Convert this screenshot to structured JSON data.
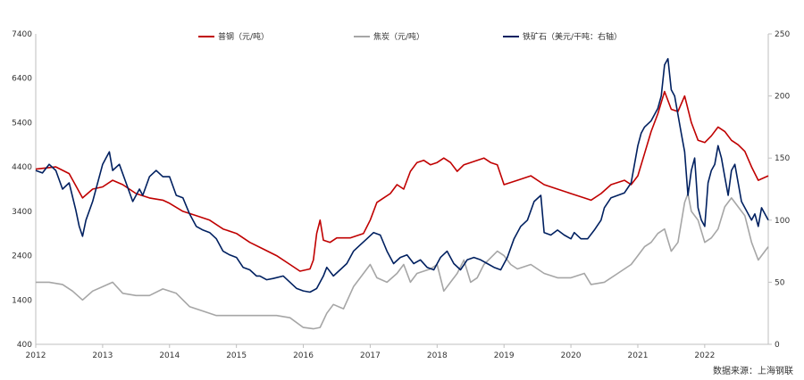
{
  "chart_data": {
    "type": "line",
    "title": "",
    "x_range": [
      2012,
      2022.95
    ],
    "x_ticks": [
      "2012",
      "2013",
      "2014",
      "2015",
      "2016",
      "2017",
      "2018",
      "2019",
      "2020",
      "2021",
      "2022"
    ],
    "y_left": {
      "range": [
        400,
        7400
      ],
      "ticks": [
        "400",
        "1400",
        "2400",
        "3400",
        "4400",
        "5400",
        "6400",
        "7400"
      ]
    },
    "y_right": {
      "range": [
        0,
        250
      ],
      "ticks": [
        "0",
        "50",
        "100",
        "150",
        "200",
        "250"
      ]
    },
    "series": [
      {
        "name": "普钢（元/吨）",
        "axis": "left",
        "color": "#c00000",
        "x": [
          2012.0,
          2012.3,
          2012.5,
          2012.7,
          2012.85,
          2013.0,
          2013.15,
          2013.3,
          2013.5,
          2013.7,
          2013.9,
          2014.0,
          2014.2,
          2014.4,
          2014.6,
          2014.8,
          2015.0,
          2015.2,
          2015.4,
          2015.6,
          2015.8,
          2015.95,
          2016.1,
          2016.15,
          2016.2,
          2016.25,
          2016.3,
          2016.4,
          2016.5,
          2016.7,
          2016.9,
          2017.0,
          2017.1,
          2017.2,
          2017.3,
          2017.4,
          2017.5,
          2017.6,
          2017.7,
          2017.8,
          2017.9,
          2018.0,
          2018.1,
          2018.2,
          2018.3,
          2018.4,
          2018.5,
          2018.6,
          2018.7,
          2018.8,
          2018.9,
          2019.0,
          2019.2,
          2019.4,
          2019.6,
          2019.8,
          2020.0,
          2020.2,
          2020.3,
          2020.45,
          2020.6,
          2020.8,
          2020.9,
          2021.0,
          2021.1,
          2021.2,
          2021.3,
          2021.4,
          2021.5,
          2021.6,
          2021.7,
          2021.8,
          2021.9,
          2022.0,
          2022.1,
          2022.2,
          2022.3,
          2022.4,
          2022.5,
          2022.6,
          2022.7,
          2022.8,
          2022.95
        ],
        "values": [
          4350,
          4400,
          4250,
          3700,
          3900,
          3950,
          4100,
          4000,
          3800,
          3700,
          3650,
          3580,
          3400,
          3300,
          3200,
          3000,
          2900,
          2700,
          2550,
          2400,
          2200,
          2050,
          2100,
          2300,
          2900,
          3200,
          2750,
          2700,
          2800,
          2800,
          2900,
          3200,
          3600,
          3700,
          3800,
          4000,
          3900,
          4300,
          4500,
          4550,
          4450,
          4500,
          4600,
          4500,
          4300,
          4450,
          4500,
          4550,
          4600,
          4500,
          4450,
          4000,
          4100,
          4200,
          4000,
          3900,
          3800,
          3700,
          3650,
          3800,
          4000,
          4100,
          4000,
          4200,
          4700,
          5200,
          5600,
          6100,
          5700,
          5650,
          6000,
          5400,
          5000,
          4950,
          5100,
          5300,
          5200,
          5000,
          4900,
          4750,
          4400,
          4100,
          4200
        ]
      },
      {
        "name": "焦炭（元/吨）",
        "axis": "left",
        "color": "#a6a6a6",
        "x": [
          2012.0,
          2012.2,
          2012.4,
          2012.55,
          2012.7,
          2012.85,
          2013.0,
          2013.15,
          2013.3,
          2013.5,
          2013.7,
          2013.9,
          2014.1,
          2014.3,
          2014.5,
          2014.7,
          2015.0,
          2015.3,
          2015.6,
          2015.8,
          2016.0,
          2016.15,
          2016.25,
          2016.35,
          2016.45,
          2016.6,
          2016.75,
          2016.9,
          2017.0,
          2017.1,
          2017.25,
          2017.4,
          2017.5,
          2017.6,
          2017.7,
          2017.8,
          2017.9,
          2018.0,
          2018.1,
          2018.2,
          2018.3,
          2018.4,
          2018.5,
          2018.6,
          2018.7,
          2018.8,
          2018.9,
          2019.0,
          2019.1,
          2019.2,
          2019.4,
          2019.6,
          2019.8,
          2020.0,
          2020.2,
          2020.3,
          2020.5,
          2020.7,
          2020.9,
          2021.0,
          2021.1,
          2021.2,
          2021.3,
          2021.4,
          2021.5,
          2021.6,
          2021.7,
          2021.75,
          2021.8,
          2021.9,
          2022.0,
          2022.1,
          2022.2,
          2022.3,
          2022.4,
          2022.5,
          2022.6,
          2022.7,
          2022.8,
          2022.95
        ],
        "values": [
          1800,
          1800,
          1750,
          1600,
          1400,
          1600,
          1700,
          1800,
          1550,
          1500,
          1500,
          1650,
          1550,
          1250,
          1150,
          1050,
          1050,
          1050,
          1050,
          1000,
          780,
          750,
          780,
          1100,
          1300,
          1200,
          1700,
          2000,
          2200,
          1900,
          1800,
          2000,
          2200,
          1800,
          2000,
          2050,
          2100,
          2200,
          1600,
          1800,
          2000,
          2300,
          1800,
          1900,
          2200,
          2350,
          2500,
          2400,
          2200,
          2100,
          2200,
          2000,
          1900,
          1900,
          2000,
          1750,
          1800,
          2000,
          2200,
          2400,
          2600,
          2700,
          2900,
          3000,
          2500,
          2700,
          3600,
          3800,
          3400,
          3200,
          2700,
          2800,
          3000,
          3500,
          3700,
          3500,
          3300,
          2700,
          2300,
          2600
        ]
      },
      {
        "name": "铁矿石（美元/干吨：右轴）",
        "axis": "right",
        "color": "#002060",
        "x": [
          2012.0,
          2012.1,
          2012.2,
          2012.3,
          2012.4,
          2012.5,
          2012.6,
          2012.65,
          2012.7,
          2012.75,
          2012.85,
          2013.0,
          2013.05,
          2013.1,
          2013.15,
          2013.25,
          2013.35,
          2013.45,
          2013.55,
          2013.6,
          2013.7,
          2013.8,
          2013.9,
          2014.0,
          2014.1,
          2014.2,
          2014.3,
          2014.4,
          2014.5,
          2014.6,
          2014.7,
          2014.8,
          2014.9,
          2015.0,
          2015.1,
          2015.2,
          2015.3,
          2015.35,
          2015.45,
          2015.55,
          2015.7,
          2015.8,
          2015.9,
          2016.0,
          2016.1,
          2016.2,
          2016.3,
          2016.35,
          2016.45,
          2016.55,
          2016.65,
          2016.75,
          2016.85,
          2016.95,
          2017.05,
          2017.15,
          2017.25,
          2017.35,
          2017.45,
          2017.55,
          2017.65,
          2017.75,
          2017.85,
          2017.95,
          2018.05,
          2018.15,
          2018.25,
          2018.35,
          2018.45,
          2018.55,
          2018.65,
          2018.75,
          2018.85,
          2018.95,
          2019.05,
          2019.15,
          2019.25,
          2019.35,
          2019.45,
          2019.55,
          2019.6,
          2019.7,
          2019.8,
          2019.9,
          2020.0,
          2020.05,
          2020.15,
          2020.25,
          2020.35,
          2020.45,
          2020.5,
          2020.6,
          2020.7,
          2020.8,
          2020.9,
          2021.0,
          2021.05,
          2021.1,
          2021.2,
          2021.3,
          2021.35,
          2021.4,
          2021.45,
          2021.5,
          2021.55,
          2021.6,
          2021.65,
          2021.7,
          2021.75,
          2021.8,
          2021.85,
          2021.9,
          2021.95,
          2022.0,
          2022.05,
          2022.1,
          2022.15,
          2022.2,
          2022.25,
          2022.3,
          2022.35,
          2022.4,
          2022.45,
          2022.5,
          2022.55,
          2022.6,
          2022.65,
          2022.7,
          2022.75,
          2022.8,
          2022.85,
          2022.95
        ],
        "values": [
          140,
          138,
          145,
          140,
          125,
          130,
          108,
          95,
          87,
          100,
          115,
          145,
          150,
          155,
          140,
          145,
          130,
          115,
          125,
          120,
          135,
          140,
          135,
          135,
          120,
          118,
          105,
          95,
          92,
          90,
          85,
          75,
          72,
          70,
          62,
          60,
          55,
          55,
          52,
          53,
          55,
          50,
          45,
          43,
          42,
          45,
          55,
          62,
          55,
          60,
          65,
          75,
          80,
          85,
          90,
          88,
          75,
          65,
          70,
          72,
          65,
          68,
          62,
          60,
          70,
          75,
          65,
          60,
          68,
          70,
          68,
          65,
          62,
          60,
          70,
          85,
          95,
          100,
          115,
          120,
          90,
          88,
          92,
          88,
          85,
          90,
          85,
          85,
          92,
          100,
          110,
          118,
          120,
          122,
          130,
          160,
          170,
          175,
          180,
          190,
          200,
          225,
          230,
          205,
          200,
          185,
          170,
          155,
          120,
          140,
          150,
          110,
          100,
          95,
          130,
          140,
          145,
          160,
          150,
          135,
          120,
          140,
          145,
          130,
          115,
          110,
          105,
          100,
          105,
          95,
          110,
          100
        ]
      }
    ],
    "legend": [
      {
        "label": "普钢（元/吨）",
        "color": "#c00000"
      },
      {
        "label": "焦炭（元/吨）",
        "color": "#a6a6a6"
      },
      {
        "label": "铁矿石（美元/干吨：右轴）",
        "color": "#002060"
      }
    ],
    "legend_position": "top-center",
    "grid": false
  },
  "source_label": "数据来源：上海钢联"
}
